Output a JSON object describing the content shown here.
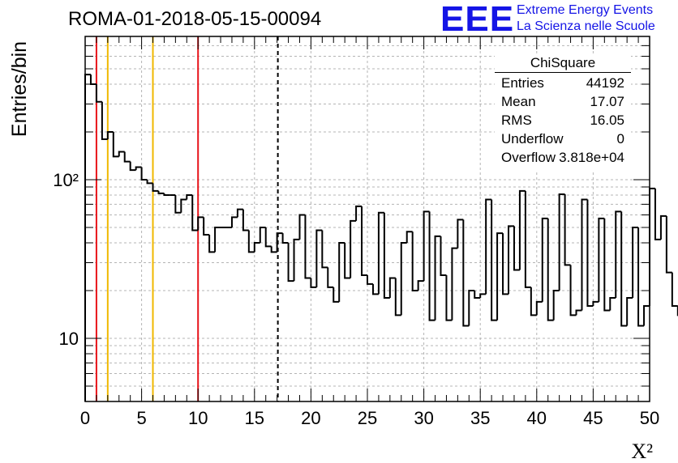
{
  "header": {
    "title": "ROMA-01-2018-05-15-00094"
  },
  "logo": {
    "text": "EEE",
    "line1": "Extreme Energy Events",
    "line2": "La Scienza nelle Scuole"
  },
  "stats": {
    "title": "ChiSquare",
    "rows": [
      {
        "label": "Entries",
        "value": "44192"
      },
      {
        "label": "Mean",
        "value": "17.07"
      },
      {
        "label": "RMS",
        "value": "16.05"
      },
      {
        "label": "Underflow",
        "value": "0"
      },
      {
        "label": "Overflow",
        "value": "3.818e+04"
      }
    ]
  },
  "colors": {
    "histogram": "#000000",
    "red_lines": "#e8141a",
    "yellow_lines": "#f0b800",
    "grid": "#b4b4b4",
    "logo": "#1414e6"
  },
  "chart_data": {
    "type": "histogram",
    "title": "ROMA-01-2018-05-15-00094",
    "xlabel": "X²",
    "ylabel": "Entries/bin",
    "xlim": [
      0,
      50
    ],
    "ylim": [
      4,
      800
    ],
    "y_scale": "log",
    "grid": true,
    "x_ticks": [
      0,
      5,
      10,
      15,
      20,
      25,
      30,
      35,
      40,
      45,
      50
    ],
    "x_tick_labels": [
      "0",
      "5",
      "10",
      "15",
      "20",
      "25",
      "30",
      "35",
      "40",
      "45",
      "50"
    ],
    "y_major_ticks": [
      10,
      100
    ],
    "y_tick_labels": [
      "10",
      "10²"
    ],
    "bin_width": 0.5,
    "bin_edges_start": 0,
    "counts": [
      460,
      400,
      310,
      180,
      200,
      140,
      150,
      130,
      115,
      120,
      100,
      95,
      85,
      82,
      80,
      80,
      62,
      75,
      80,
      48,
      58,
      45,
      35,
      50,
      50,
      50,
      58,
      65,
      48,
      35,
      40,
      50,
      38,
      35,
      46,
      40,
      23,
      42,
      60,
      24,
      21,
      48,
      28,
      21,
      17,
      40,
      24,
      55,
      68,
      25,
      22,
      19,
      62,
      18,
      24,
      14,
      40,
      47,
      20,
      23,
      63,
      13,
      44,
      25,
      13,
      37,
      56,
      12,
      20,
      18,
      19,
      75,
      13,
      46,
      19,
      51,
      27,
      85,
      21,
      14,
      17,
      57,
      13,
      20,
      81,
      29,
      14,
      15,
      75,
      16,
      17,
      57,
      15,
      18,
      63,
      12,
      18,
      50,
      12,
      16,
      88,
      42,
      59,
      26,
      16,
      14,
      107,
      14,
      22,
      19,
      54,
      15,
      14,
      23,
      12,
      16,
      18,
      100,
      14,
      22,
      14,
      18,
      17,
      69,
      13,
      22,
      37,
      12,
      15,
      20,
      70,
      19,
      18,
      18,
      87,
      12,
      17,
      20,
      16,
      22,
      17,
      60,
      9,
      27,
      15,
      40,
      10,
      17,
      45,
      8,
      15,
      45,
      20,
      24,
      20,
      30,
      10,
      8,
      18,
      22
    ],
    "vertical_lines": [
      {
        "x": 1,
        "color": "red",
        "style": "solid"
      },
      {
        "x": 2,
        "color": "yellow",
        "style": "solid"
      },
      {
        "x": 6,
        "color": "yellow",
        "style": "solid"
      },
      {
        "x": 10,
        "color": "red",
        "style": "solid"
      },
      {
        "x": 17.07,
        "color": "black",
        "style": "dashed"
      }
    ]
  }
}
